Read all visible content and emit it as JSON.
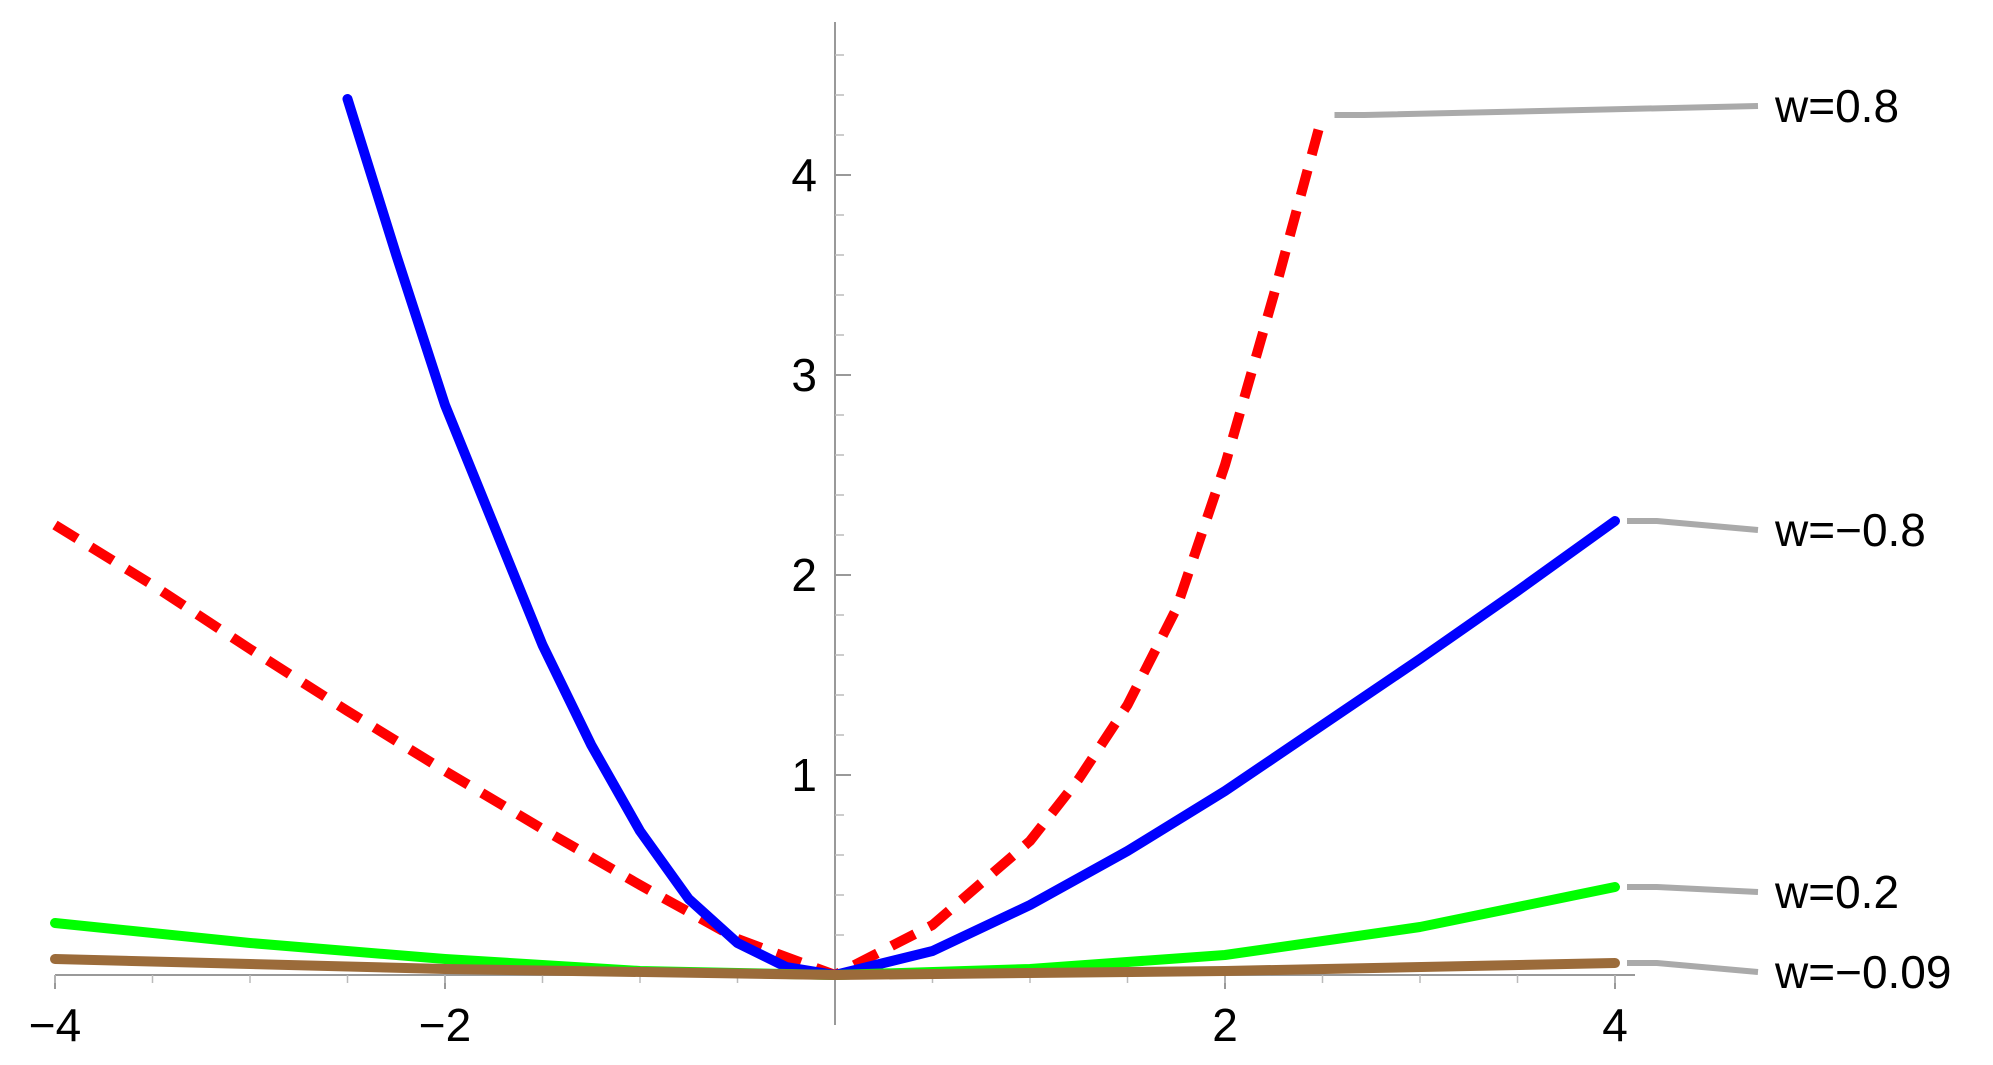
{
  "chart_data": {
    "type": "line",
    "title": "",
    "xlabel": "",
    "ylabel": "",
    "xlim": [
      -4,
      4
    ],
    "ylim": [
      0,
      4.6
    ],
    "x_ticks": [
      -4,
      -2,
      2,
      4
    ],
    "x_tick_labels": [
      "−4",
      "−2",
      "2",
      "4"
    ],
    "y_ticks": [
      1,
      2,
      3,
      4
    ],
    "y_tick_labels": [
      "1",
      "2",
      "3",
      "4"
    ],
    "grid": false,
    "legend_position": "right (labels attached to curve ends)",
    "series": [
      {
        "name": "w=0.8",
        "color": "#ff0000",
        "style": "dashed",
        "x": [
          -4,
          -3.5,
          -3,
          -2.5,
          -2,
          -1.5,
          -1,
          -0.5,
          0,
          0.5,
          1,
          1.25,
          1.5,
          1.75,
          2,
          2.25,
          2.5
        ],
        "y": [
          2.25,
          1.95,
          1.63,
          1.32,
          1.02,
          0.73,
          0.45,
          0.18,
          0,
          0.25,
          0.67,
          0.98,
          1.35,
          1.83,
          2.55,
          3.4,
          4.3
        ]
      },
      {
        "name": "w=−0.8",
        "color": "#0000ff",
        "style": "solid",
        "x": [
          -2.5,
          -2.25,
          -2,
          -1.75,
          -1.5,
          -1.25,
          -1,
          -0.75,
          -0.5,
          -0.25,
          0,
          0.5,
          1,
          1.5,
          2,
          2.5,
          3,
          3.5,
          4
        ],
        "y": [
          4.38,
          3.6,
          2.85,
          2.25,
          1.65,
          1.15,
          0.72,
          0.38,
          0.16,
          0.04,
          0,
          0.12,
          0.35,
          0.62,
          0.92,
          1.25,
          1.58,
          1.92,
          2.27
        ]
      },
      {
        "name": "w=0.2",
        "color": "#00ff00",
        "style": "solid",
        "x": [
          -4,
          -3,
          -2,
          -1,
          0,
          1,
          2,
          3,
          4
        ],
        "y": [
          0.26,
          0.16,
          0.08,
          0.02,
          0,
          0.03,
          0.1,
          0.24,
          0.44
        ]
      },
      {
        "name": "w=−0.09",
        "color": "#9b6b3a",
        "style": "solid",
        "x": [
          -4,
          -2,
          0,
          2,
          4
        ],
        "y": [
          0.08,
          0.03,
          0,
          0.02,
          0.06
        ]
      }
    ]
  }
}
